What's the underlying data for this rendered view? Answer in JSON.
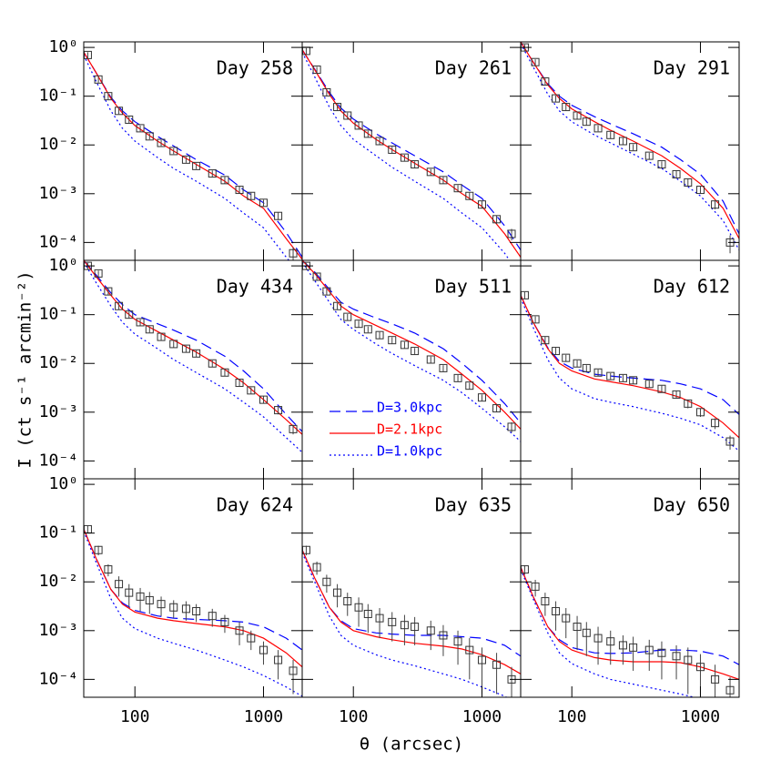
{
  "xlabel": "θ (arcsec)",
  "ylabel": "I (ct s⁻¹ arcmin⁻²)",
  "xlog": true,
  "ylog": true,
  "xlim": [
    40,
    2000
  ],
  "ylim": [
    4.3e-05,
    1.3
  ],
  "xticks": [
    100,
    1000
  ],
  "yticks": [
    {
      "value": 1,
      "label": "10⁰"
    },
    {
      "value": 0.1,
      "label": "10⁻¹"
    },
    {
      "value": 0.01,
      "label": "10⁻²"
    },
    {
      "value": 0.001,
      "label": "10⁻³"
    },
    {
      "value": 0.0001,
      "label": "10⁻⁴"
    }
  ],
  "legend": [
    {
      "name": "D=3.0kpc",
      "color": "#0000ff",
      "dash": "dashed"
    },
    {
      "name": "D=2.1kpc",
      "color": "#ff0000",
      "dash": "solid"
    },
    {
      "name": "D=1.0kpc",
      "color": "#0000ff",
      "dash": "dotted"
    }
  ],
  "chart_data": [
    {
      "type": "line",
      "title": "Day 258",
      "x": [
        43,
        52,
        62,
        75,
        90,
        110,
        130,
        160,
        200,
        250,
        300,
        400,
        500,
        650,
        800,
        1000,
        1300,
        1700
      ],
      "values": [
        0.7,
        0.22,
        0.1,
        0.05,
        0.033,
        0.022,
        0.015,
        0.011,
        0.0075,
        0.005,
        0.0037,
        0.0026,
        0.0019,
        0.0012,
        0.0009,
        0.00065,
        0.00035,
        6e-05
      ],
      "errors": [
        0.1,
        0.03,
        0.015,
        0.007,
        0.005,
        0.003,
        0.002,
        0.0015,
        0.001,
        0.0007,
        0.0005,
        0.0004,
        0.0003,
        0.0002,
        0.00015,
        0.0001,
        6e-05,
        2e-05
      ],
      "model_x": [
        40,
        50,
        65,
        80,
        100,
        150,
        200,
        300,
        500,
        700,
        1000,
        1500,
        2000
      ],
      "models": [
        [
          0.8,
          0.3,
          0.095,
          0.05,
          0.03,
          0.015,
          0.0095,
          0.005,
          0.0024,
          0.0012,
          0.00065,
          0.00016,
          5e-05
        ],
        [
          0.8,
          0.3,
          0.09,
          0.045,
          0.025,
          0.012,
          0.0075,
          0.004,
          0.0018,
          0.0009,
          0.0005,
          0.00012,
          4.5e-05
        ],
        [
          0.7,
          0.2,
          0.05,
          0.022,
          0.012,
          0.0055,
          0.0033,
          0.0018,
          0.0008,
          0.0004,
          0.0002,
          5e-05,
          2e-05
        ]
      ]
    },
    {
      "type": "line",
      "title": "Day 261",
      "x": [
        43,
        52,
        62,
        75,
        90,
        110,
        130,
        160,
        200,
        250,
        300,
        400,
        500,
        650,
        800,
        1000,
        1300,
        1700
      ],
      "values": [
        0.85,
        0.35,
        0.12,
        0.06,
        0.04,
        0.025,
        0.017,
        0.012,
        0.008,
        0.0055,
        0.004,
        0.0028,
        0.0019,
        0.0013,
        0.0009,
        0.0006,
        0.0003,
        0.00015
      ],
      "errors": [
        0.12,
        0.05,
        0.018,
        0.009,
        0.006,
        0.004,
        0.0025,
        0.0018,
        0.0012,
        0.0008,
        0.0006,
        0.0004,
        0.0003,
        0.0002,
        0.00015,
        0.0001,
        6e-05,
        4e-05
      ],
      "model_x": [
        40,
        50,
        65,
        80,
        100,
        150,
        200,
        300,
        500,
        700,
        1000,
        1500,
        2000
      ],
      "models": [
        [
          0.9,
          0.36,
          0.12,
          0.057,
          0.034,
          0.017,
          0.011,
          0.006,
          0.0028,
          0.0015,
          0.0008,
          0.00022,
          7e-05
        ],
        [
          0.9,
          0.35,
          0.11,
          0.05,
          0.028,
          0.013,
          0.008,
          0.0042,
          0.0019,
          0.001,
          0.00055,
          0.00015,
          5e-05
        ],
        [
          0.8,
          0.25,
          0.06,
          0.025,
          0.013,
          0.006,
          0.0035,
          0.0018,
          0.0008,
          0.0004,
          0.0002,
          6e-05,
          2e-05
        ]
      ]
    },
    {
      "type": "line",
      "title": "Day 291",
      "x": [
        43,
        52,
        62,
        75,
        90,
        110,
        130,
        160,
        200,
        250,
        300,
        400,
        500,
        650,
        800,
        1000,
        1300,
        1700
      ],
      "values": [
        1.0,
        0.5,
        0.2,
        0.09,
        0.06,
        0.04,
        0.03,
        0.022,
        0.016,
        0.012,
        0.009,
        0.006,
        0.004,
        0.0025,
        0.0017,
        0.0012,
        0.0006,
        0.0001
      ],
      "errors": [
        0.15,
        0.07,
        0.03,
        0.013,
        0.009,
        0.006,
        0.0045,
        0.003,
        0.0024,
        0.0018,
        0.0013,
        0.0009,
        0.0006,
        0.0004,
        0.0003,
        0.0002,
        0.00012,
        4e-05
      ],
      "model_x": [
        40,
        50,
        65,
        80,
        100,
        150,
        200,
        300,
        500,
        700,
        1000,
        1500,
        2000
      ],
      "models": [
        [
          1.3,
          0.5,
          0.18,
          0.1,
          0.065,
          0.038,
          0.027,
          0.017,
          0.009,
          0.005,
          0.0025,
          0.0007,
          0.00015
        ],
        [
          1.3,
          0.5,
          0.17,
          0.09,
          0.055,
          0.03,
          0.02,
          0.012,
          0.006,
          0.0033,
          0.0016,
          0.0005,
          0.00012
        ],
        [
          1.2,
          0.4,
          0.11,
          0.05,
          0.03,
          0.016,
          0.011,
          0.0065,
          0.0033,
          0.0018,
          0.0009,
          0.00028,
          7e-05
        ]
      ]
    },
    {
      "type": "line",
      "title": "Day 434",
      "x": [
        43,
        52,
        62,
        75,
        90,
        110,
        130,
        160,
        200,
        250,
        300,
        400,
        500,
        650,
        800,
        1000,
        1300,
        1700
      ],
      "values": [
        1.0,
        0.7,
        0.3,
        0.15,
        0.1,
        0.07,
        0.05,
        0.035,
        0.025,
        0.02,
        0.016,
        0.01,
        0.0065,
        0.004,
        0.0028,
        0.0018,
        0.0011,
        0.00045
      ],
      "errors": [
        0.15,
        0.1,
        0.045,
        0.022,
        0.015,
        0.01,
        0.007,
        0.005,
        0.0037,
        0.003,
        0.0024,
        0.0015,
        0.001,
        0.0006,
        0.0004,
        0.0003,
        0.0002,
        0.0001
      ],
      "model_x": [
        40,
        50,
        65,
        80,
        100,
        150,
        200,
        300,
        500,
        700,
        1000,
        1500,
        2000
      ],
      "models": [
        [
          1.3,
          0.65,
          0.28,
          0.16,
          0.1,
          0.065,
          0.048,
          0.03,
          0.014,
          0.007,
          0.003,
          0.0009,
          0.0004
        ],
        [
          1.3,
          0.6,
          0.25,
          0.13,
          0.08,
          0.045,
          0.03,
          0.017,
          0.0075,
          0.004,
          0.0018,
          0.0007,
          0.00035
        ],
        [
          1.2,
          0.45,
          0.15,
          0.07,
          0.04,
          0.02,
          0.012,
          0.0065,
          0.003,
          0.0016,
          0.0008,
          0.0003,
          0.00015
        ]
      ]
    },
    {
      "type": "line",
      "title": "Day 511",
      "x": [
        43,
        52,
        62,
        75,
        90,
        110,
        130,
        160,
        200,
        250,
        300,
        400,
        500,
        650,
        800,
        1000,
        1300,
        1700
      ],
      "values": [
        1.0,
        0.6,
        0.3,
        0.15,
        0.09,
        0.065,
        0.05,
        0.038,
        0.03,
        0.024,
        0.018,
        0.012,
        0.008,
        0.005,
        0.0035,
        0.002,
        0.0012,
        0.0005
      ],
      "errors": [
        0.15,
        0.09,
        0.045,
        0.022,
        0.013,
        0.01,
        0.007,
        0.006,
        0.0045,
        0.0036,
        0.0027,
        0.0018,
        0.0012,
        0.0008,
        0.0005,
        0.0003,
        0.0002,
        0.00012
      ],
      "model_x": [
        40,
        50,
        65,
        80,
        100,
        150,
        200,
        300,
        500,
        700,
        1000,
        1500,
        2000
      ],
      "models": [
        [
          1.3,
          0.75,
          0.33,
          0.18,
          0.13,
          0.085,
          0.065,
          0.042,
          0.02,
          0.01,
          0.0045,
          0.0015,
          0.0006
        ],
        [
          1.3,
          0.7,
          0.3,
          0.15,
          0.1,
          0.06,
          0.042,
          0.025,
          0.012,
          0.006,
          0.0028,
          0.001,
          0.00045
        ],
        [
          1.2,
          0.5,
          0.18,
          0.08,
          0.05,
          0.025,
          0.016,
          0.009,
          0.0045,
          0.0025,
          0.0012,
          0.0005,
          0.00025
        ]
      ]
    },
    {
      "type": "line",
      "title": "Day 612",
      "x": [
        43,
        52,
        62,
        75,
        90,
        110,
        130,
        160,
        200,
        250,
        300,
        400,
        500,
        650,
        800,
        1000,
        1300,
        1700
      ],
      "values": [
        0.25,
        0.08,
        0.03,
        0.018,
        0.013,
        0.01,
        0.008,
        0.0065,
        0.0055,
        0.005,
        0.0045,
        0.0038,
        0.003,
        0.0023,
        0.0015,
        0.001,
        0.0006,
        0.00025
      ],
      "errors": [
        0.04,
        0.012,
        0.005,
        0.003,
        0.002,
        0.0015,
        0.0012,
        0.001,
        0.0008,
        0.0008,
        0.0007,
        0.0006,
        0.0005,
        0.0004,
        0.0003,
        0.0002,
        0.00015,
        8e-05
      ],
      "model_x": [
        40,
        50,
        65,
        80,
        100,
        150,
        200,
        300,
        500,
        700,
        1000,
        1500,
        2000
      ],
      "models": [
        [
          0.25,
          0.07,
          0.021,
          0.011,
          0.008,
          0.006,
          0.0055,
          0.005,
          0.0045,
          0.0038,
          0.003,
          0.0018,
          0.0009
        ],
        [
          0.25,
          0.07,
          0.02,
          0.01,
          0.007,
          0.0048,
          0.0042,
          0.0035,
          0.0026,
          0.002,
          0.0013,
          0.0006,
          0.0003
        ],
        [
          0.22,
          0.055,
          0.012,
          0.005,
          0.003,
          0.0019,
          0.0016,
          0.0013,
          0.00095,
          0.00075,
          0.00055,
          0.0003,
          0.00016
        ]
      ]
    },
    {
      "type": "line",
      "title": "Day 624",
      "x": [
        43,
        52,
        62,
        75,
        90,
        110,
        130,
        160,
        200,
        250,
        300,
        400,
        500,
        650,
        800,
        1000,
        1300,
        1700
      ],
      "values": [
        0.12,
        0.045,
        0.018,
        0.009,
        0.006,
        0.005,
        0.0042,
        0.0035,
        0.003,
        0.0028,
        0.0025,
        0.002,
        0.0015,
        0.001,
        0.0007,
        0.0004,
        0.00025,
        0.00015
      ],
      "errors": [
        0.02,
        0.01,
        0.005,
        0.004,
        0.003,
        0.0025,
        0.002,
        0.0015,
        0.0012,
        0.0012,
        0.001,
        0.0008,
        0.0006,
        0.0005,
        0.0003,
        0.0002,
        0.00015,
        0.0001
      ],
      "model_x": [
        40,
        50,
        65,
        80,
        100,
        150,
        200,
        300,
        500,
        700,
        1000,
        1500,
        2000
      ],
      "models": [
        [
          0.12,
          0.03,
          0.007,
          0.0037,
          0.0026,
          0.002,
          0.0018,
          0.0017,
          0.0016,
          0.0015,
          0.0012,
          0.0007,
          0.0004
        ],
        [
          0.12,
          0.03,
          0.007,
          0.0035,
          0.0024,
          0.0018,
          0.0016,
          0.0014,
          0.0012,
          0.001,
          0.0007,
          0.00035,
          0.00018
        ],
        [
          0.11,
          0.025,
          0.0045,
          0.0018,
          0.0011,
          0.0007,
          0.00055,
          0.0004,
          0.00025,
          0.00018,
          0.00012,
          7e-05,
          4.5e-05
        ]
      ]
    },
    {
      "type": "line",
      "title": "Day 635",
      "x": [
        43,
        52,
        62,
        75,
        90,
        110,
        130,
        160,
        200,
        250,
        300,
        400,
        500,
        650,
        800,
        1000,
        1300,
        1700
      ],
      "values": [
        0.045,
        0.02,
        0.01,
        0.006,
        0.004,
        0.003,
        0.0022,
        0.0018,
        0.0015,
        0.0013,
        0.0012,
        0.001,
        0.0008,
        0.0006,
        0.0004,
        0.00025,
        0.0002,
        0.0001
      ],
      "errors": [
        0.01,
        0.006,
        0.004,
        0.003,
        0.002,
        0.0018,
        0.0013,
        0.0011,
        0.0009,
        0.0008,
        0.0007,
        0.0006,
        0.0005,
        0.0004,
        0.0003,
        0.0002,
        0.00015,
        8e-05
      ],
      "model_x": [
        40,
        50,
        65,
        80,
        100,
        150,
        200,
        300,
        500,
        700,
        1000,
        1500,
        2000
      ],
      "models": [
        [
          0.045,
          0.012,
          0.003,
          0.0016,
          0.0011,
          0.0009,
          0.00085,
          0.0008,
          0.0008,
          0.00075,
          0.0007,
          0.0005,
          0.0003
        ],
        [
          0.045,
          0.012,
          0.003,
          0.0015,
          0.001,
          0.00075,
          0.00065,
          0.00055,
          0.00048,
          0.00042,
          0.00032,
          0.0002,
          0.00013
        ],
        [
          0.04,
          0.01,
          0.002,
          0.0008,
          0.0005,
          0.00032,
          0.00025,
          0.00019,
          0.00013,
          0.0001,
          7e-05,
          4.5e-05,
          3e-05
        ]
      ]
    },
    {
      "type": "line",
      "title": "Day 650",
      "x": [
        43,
        52,
        62,
        75,
        90,
        110,
        130,
        160,
        200,
        250,
        300,
        400,
        500,
        650,
        800,
        1000,
        1300,
        1700
      ],
      "values": [
        0.018,
        0.008,
        0.004,
        0.0025,
        0.0018,
        0.0012,
        0.0009,
        0.0007,
        0.0006,
        0.0005,
        0.00045,
        0.0004,
        0.00035,
        0.0003,
        0.00025,
        0.00018,
        0.0001,
        6e-05
      ],
      "errors": [
        0.004,
        0.003,
        0.002,
        0.0015,
        0.0011,
        0.0008,
        0.0006,
        0.0005,
        0.0004,
        0.0003,
        0.0003,
        0.00025,
        0.00025,
        0.0002,
        0.0002,
        0.00015,
        0.0001,
        5e-05
      ],
      "model_x": [
        40,
        50,
        65,
        80,
        100,
        150,
        200,
        300,
        500,
        700,
        1000,
        1500,
        2000
      ],
      "models": [
        [
          0.02,
          0.005,
          0.0012,
          0.00065,
          0.00045,
          0.00035,
          0.00034,
          0.00035,
          0.0004,
          0.0004,
          0.00038,
          0.0003,
          0.0002
        ],
        [
          0.02,
          0.005,
          0.0012,
          0.0006,
          0.0004,
          0.00028,
          0.00025,
          0.00023,
          0.00023,
          0.00022,
          0.00018,
          0.00013,
          0.0001
        ],
        [
          0.018,
          0.0045,
          0.0009,
          0.00035,
          0.00021,
          0.00013,
          0.0001,
          8e-05,
          6e-05,
          5e-05,
          4e-05,
          3e-05,
          2.5e-05
        ]
      ]
    }
  ]
}
